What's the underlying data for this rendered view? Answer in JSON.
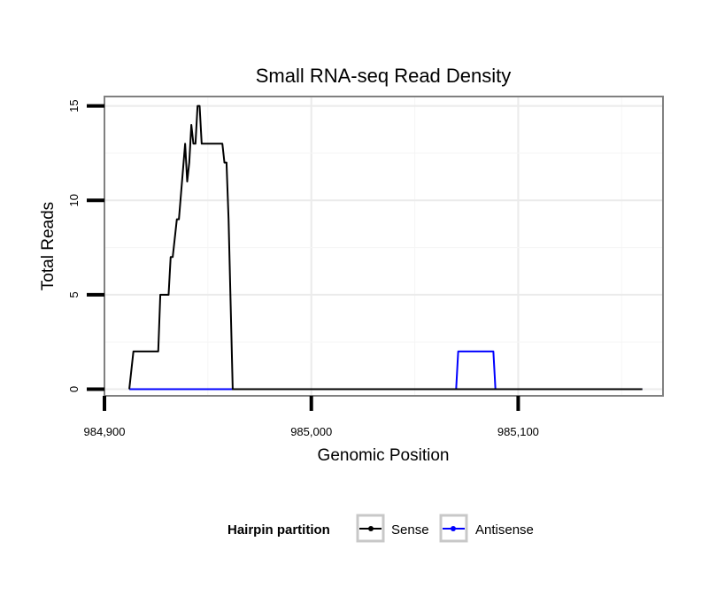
{
  "chart_data": {
    "type": "line",
    "title": "Small RNA-seq Read Density",
    "xlabel": "Genomic Position",
    "ylabel": "Total Reads",
    "xlim": [
      984900,
      985170
    ],
    "ylim": [
      -0.35,
      15.5
    ],
    "x_ticks": [
      984900,
      985000,
      985100
    ],
    "x_tick_labels": [
      "984,900",
      "985,000",
      "985,100"
    ],
    "y_ticks": [
      0,
      5,
      10,
      15
    ],
    "y_tick_labels": [
      "0",
      "5",
      "10",
      "15"
    ],
    "grid": true,
    "legend": {
      "title": "Hairpin partition",
      "position": "bottom",
      "entries": [
        "Sense",
        "Antisense"
      ]
    },
    "series": [
      {
        "name": "Sense",
        "color": "#000000",
        "x": [
          984912,
          984914,
          984915,
          984926,
          984927,
          984931,
          984932,
          984933,
          984935,
          984936,
          984939,
          984940,
          984941,
          984942,
          984943,
          984944,
          984945,
          984946,
          984947,
          984950,
          984956,
          984957,
          984958,
          984959,
          984960,
          984962,
          985160
        ],
        "y": [
          0,
          2,
          2,
          2,
          5,
          5,
          7,
          7,
          9,
          9,
          13,
          11,
          12,
          14,
          13,
          13,
          15,
          15,
          13,
          13,
          13,
          13,
          12,
          12,
          9,
          0,
          0
        ]
      },
      {
        "name": "Antisense",
        "color": "#0000ff",
        "x": [
          984912,
          985070,
          985071,
          985088,
          985089,
          985160
        ],
        "y": [
          0,
          0,
          2,
          2,
          0,
          0
        ]
      }
    ]
  }
}
